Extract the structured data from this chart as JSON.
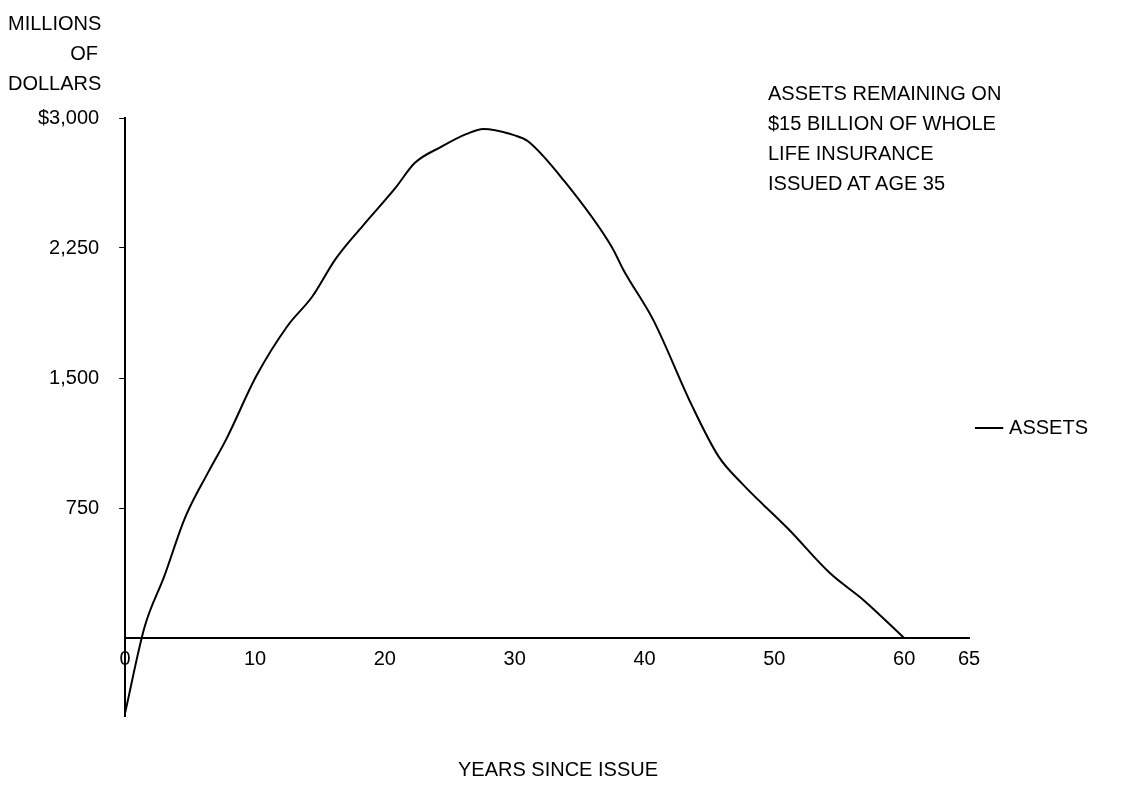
{
  "chart_data": {
    "type": "line",
    "ylabel": "MILLIONS OF DOLLARS",
    "xlabel": "YEARS SINCE ISSUE",
    "annotations": [
      "ASSETS REMAINING ON $15 BILLION OF WHOLE LIFE INSURANCE ISSUED AT AGE 35"
    ],
    "xlim": [
      0,
      65
    ],
    "xticks": [
      0,
      10,
      20,
      30,
      40,
      50,
      60,
      65
    ],
    "ylim": [
      -450,
      3000
    ],
    "yticks": [
      {
        "value": 750,
        "label": "750"
      },
      {
        "value": 1500,
        "label": "1,500"
      },
      {
        "value": 2250,
        "label": "2,250"
      },
      {
        "value": 3000,
        "label": "$3,000"
      }
    ],
    "grid": false,
    "legend": "right",
    "marker": "none",
    "line_style": "solid",
    "series": [
      {
        "name": "ASSETS",
        "color": "#000000",
        "x": [
          0,
          1.5,
          3,
          4.6,
          6.4,
          7.8,
          10.1,
          12.5,
          14.4,
          16.2,
          18.3,
          20.8,
          22.3,
          24.4,
          26.3,
          27.6,
          30,
          31,
          33.8,
          37.5,
          38.4,
          40.7,
          43.6,
          45.7,
          47.5,
          51.1,
          54.3,
          56.9,
          60
        ],
        "values": [
          -430,
          65,
          354,
          692,
          957,
          1149,
          1511,
          1800,
          1969,
          2186,
          2378,
          2595,
          2740,
          2836,
          2908,
          2937,
          2900,
          2867,
          2638,
          2253,
          2120,
          1831,
          1349,
          1048,
          892,
          627,
          373,
          217,
          0
        ]
      }
    ]
  }
}
